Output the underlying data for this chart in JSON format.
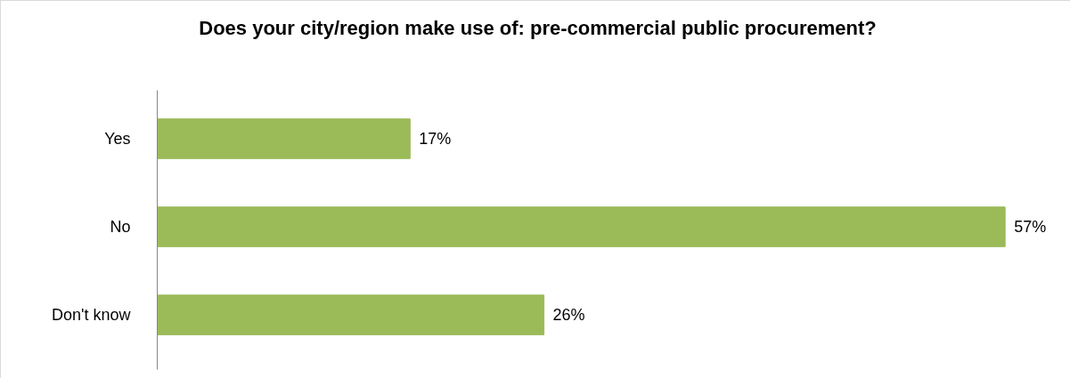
{
  "chart_data": {
    "type": "bar",
    "orientation": "horizontal",
    "title": "Does your city/region make use of: pre-commercial public procurement?",
    "categories": [
      "Yes",
      "No",
      "Don't know"
    ],
    "values": [
      17,
      57,
      26
    ],
    "value_labels": [
      "17%",
      "57%",
      "26%"
    ],
    "color": "#9bbb59",
    "grid": false
  }
}
